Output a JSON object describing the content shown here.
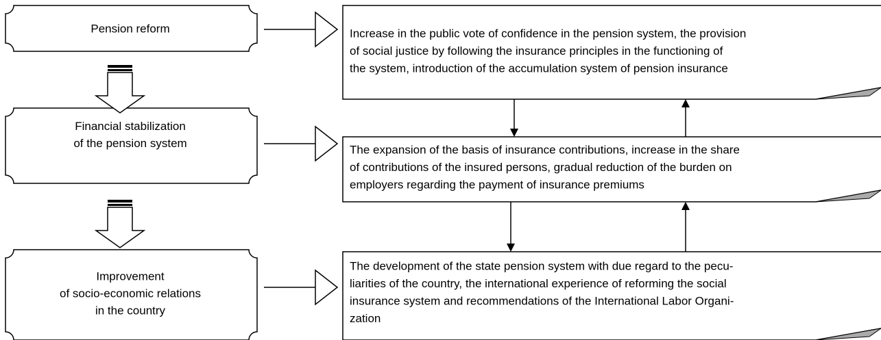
{
  "nodes": [
    {
      "lines": [
        "Pension reform"
      ]
    },
    {
      "lines": [
        "Financial stabilization",
        "of the pension system"
      ]
    },
    {
      "lines": [
        "Improvement",
        "of socio-economic relations",
        "in the country"
      ]
    }
  ],
  "outcomes": [
    {
      "lines": [
        "Increase in the public vote of confidence in the pension system, the provision",
        "of social justice by following the insurance principles in the functioning of",
        "the system, introduction of the accumulation system of pension insurance"
      ]
    },
    {
      "lines": [
        "The expansion of the basis of insurance contributions, increase in the share",
        "of contributions of the insured persons, gradual reduction of the burden on",
        "employers regarding the payment of insurance premiums"
      ]
    },
    {
      "lines": [
        "The development of the state pension system with due regard to the pecu-",
        "liarities of the country, the international experience of reforming the social",
        "insurance system and recommendations of the International Labor Organi-",
        "zation"
      ]
    }
  ]
}
